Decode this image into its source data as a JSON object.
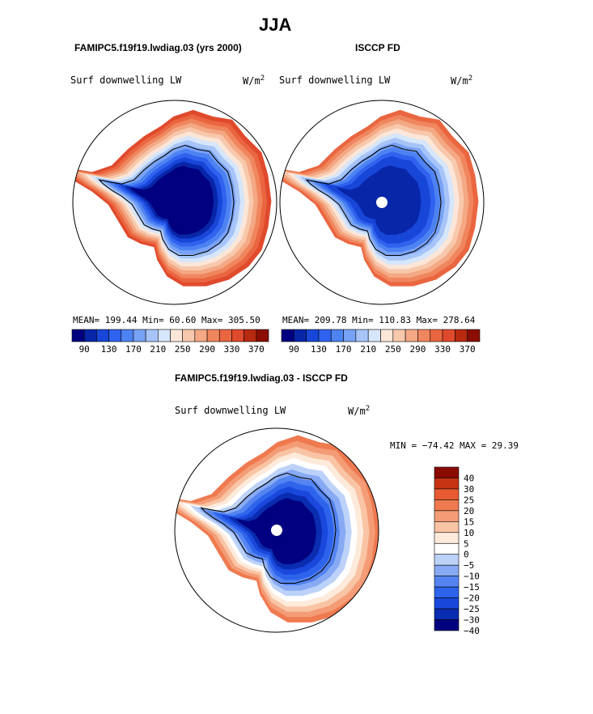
{
  "season": "JJA",
  "colors": {
    "seq": [
      "#000080",
      "#0826a8",
      "#1846d8",
      "#2f62ee",
      "#4d82f2",
      "#78a2f6",
      "#a6c4f8",
      "#d6e6fb",
      "#fbe6d8",
      "#f8c8ac",
      "#f4a884",
      "#f0865e",
      "#ea6640",
      "#e04a2c",
      "#b82a10",
      "#8a0e02"
    ],
    "div": [
      "#000080",
      "#0a2cb0",
      "#1a48dc",
      "#2e64ec",
      "#5484f0",
      "#88aaf4",
      "#bcd2f8",
      "#ffffff",
      "#fdeada",
      "#f9c4a4",
      "#f49c76",
      "#ef7a50",
      "#e85a32",
      "#c63414",
      "#8a0a00"
    ]
  },
  "panel1": {
    "title": "FAMIPC5.f19f19.lwdiag.03 (yrs 2000)",
    "var_label": "Surf downwelling LW",
    "units": "W/m",
    "units_exp": "2",
    "stats": "MEAN= 199.44  Min=  60.60  Max= 305.50"
  },
  "panel2": {
    "title": "ISCCP FD",
    "var_label": "Surf downwelling LW",
    "units": "W/m",
    "units_exp": "2",
    "stats": "MEAN= 209.78  Min= 110.83  Max= 278.64"
  },
  "panel3": {
    "title": "FAMIPC5.f19f19.lwdiag.03 - ISCCP FD",
    "var_label": "Surf downwelling LW",
    "units": "W/m",
    "units_exp": "2",
    "stats": "MIN = −74.42 MAX =  29.39"
  },
  "chart_data": [
    {
      "type": "heatmap",
      "projection": "south-polar-stereographic",
      "title": "FAMIPC5.f19f19.lwdiag.03 (yrs 2000)",
      "variable": "Surf downwelling LW",
      "units": "W/m^2",
      "mean": 199.44,
      "min": 60.6,
      "max": 305.5,
      "colorbar_ticks": [
        "90",
        "130",
        "170",
        "210",
        "250",
        "290",
        "330",
        "370"
      ]
    },
    {
      "type": "heatmap",
      "projection": "south-polar-stereographic",
      "title": "ISCCP FD",
      "variable": "Surf downwelling LW",
      "units": "W/m^2",
      "mean": 209.78,
      "min": 110.83,
      "max": 278.64,
      "colorbar_ticks": [
        "90",
        "130",
        "170",
        "210",
        "250",
        "290",
        "330",
        "370"
      ]
    },
    {
      "type": "heatmap",
      "projection": "south-polar-stereographic",
      "title": "FAMIPC5.f19f19.lwdiag.03 - ISCCP FD",
      "variable": "Surf downwelling LW",
      "units": "W/m^2",
      "min": -74.42,
      "max": 29.39,
      "colorbar_ticks": [
        "40",
        "30",
        "25",
        "20",
        "15",
        "10",
        "5",
        "0",
        "−5",
        "−10",
        "−15",
        "−20",
        "−25",
        "−30",
        "−40"
      ]
    }
  ]
}
